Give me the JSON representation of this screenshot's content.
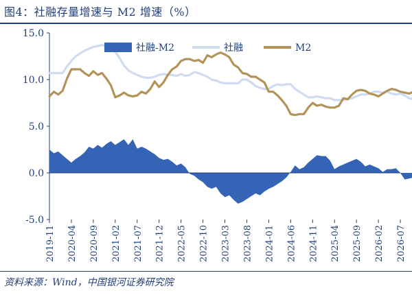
{
  "title": "图4：社融存量增速与 M2 增速（%）",
  "source": "资料来源：Wind，中国银河证券研究院",
  "colors": {
    "bar": "#3563b5",
    "shrf": "#cfdcf0",
    "m2": "#b4935a",
    "axis": "#1f3f7a",
    "text": "#1f3f7a"
  },
  "chart_data": {
    "type": "line",
    "ylim": [
      -5,
      15
    ],
    "yticks": [
      "15.0",
      "10.0",
      "5.0",
      "0.0",
      "-5.0"
    ],
    "ytick_values": [
      15,
      10,
      5,
      0,
      -5
    ],
    "xticks": [
      "2019-11",
      "2020-04",
      "2020-09",
      "2021-02",
      "2021-07",
      "2021-12",
      "2022-05",
      "2022-10",
      "2023-03",
      "2023-08",
      "2024-01",
      "2024-06",
      "2024-11",
      "2025-04",
      "2025-09",
      "2026-02",
      "2026-07"
    ],
    "legend": {
      "placement": "top"
    },
    "series": [
      {
        "name": "社融-M2",
        "kind": "area",
        "values": [
          2.5,
          2.1,
          2.3,
          1.9,
          1.5,
          1.1,
          1.5,
          1.8,
          2.2,
          2.8,
          2.6,
          3.0,
          2.7,
          3.1,
          3.4,
          3.0,
          3.3,
          3.6,
          3.0,
          3.6,
          2.6,
          2.8,
          2.6,
          2.3,
          2.0,
          1.6,
          1.4,
          1.5,
          1.2,
          0.8,
          1.0,
          0.6,
          -0.1,
          -0.3,
          -0.7,
          -1.0,
          -1.5,
          -1.7,
          -1.5,
          -2.2,
          -2.6,
          -2.4,
          -2.9,
          -3.3,
          -3.1,
          -2.8,
          -2.5,
          -2.2,
          -2.4,
          -2.0,
          -1.7,
          -1.5,
          -1.2,
          -0.9,
          -0.5,
          0.1,
          0.8,
          0.4,
          0.6,
          1.1,
          1.5,
          1.9,
          1.8,
          1.8,
          1.3,
          0.4,
          0.7,
          0.9,
          1.1,
          1.3,
          1.5,
          1.2,
          0.7,
          0.9,
          0.7,
          0.5,
          0.1,
          0.4,
          0.4,
          0.5,
          0.0,
          -0.7,
          -0.6,
          -0.5,
          -0.7,
          -0.8,
          -0.6,
          -0.3
        ],
        "start": "2019-11"
      },
      {
        "name": "社融",
        "kind": "line",
        "values": [
          10.7,
          10.7,
          10.7,
          10.7,
          11.4,
          12.0,
          12.5,
          12.8,
          13.1,
          13.3,
          13.5,
          13.6,
          13.7,
          13.6,
          13.3,
          13.0,
          12.3,
          11.5,
          11.0,
          10.7,
          10.5,
          10.3,
          10.2,
          10.2,
          10.3,
          10.5,
          10.6,
          10.5,
          10.5,
          10.4,
          10.6,
          10.4,
          10.5,
          10.8,
          10.7,
          10.5,
          10.3,
          10.0,
          9.9,
          9.7,
          9.6,
          9.6,
          9.6,
          9.6,
          10.0,
          10.0,
          9.7,
          9.3,
          9.1,
          9.0,
          9.0,
          9.3,
          9.5,
          9.4,
          9.5,
          9.5,
          9.0,
          8.7,
          8.4,
          8.1,
          8.1,
          8.2,
          8.1,
          8.0,
          8.0,
          7.8,
          7.8,
          7.8,
          7.9,
          8.0,
          8.2,
          8.4,
          8.4,
          8.5,
          8.7,
          8.7,
          8.6,
          8.7,
          8.5,
          8.4,
          8.5,
          8.3,
          8.0,
          7.9,
          7.8,
          7.7,
          7.5,
          7.4
        ],
        "start": "2019-11"
      },
      {
        "name": "M2",
        "kind": "line",
        "values": [
          8.2,
          8.7,
          8.4,
          8.8,
          10.1,
          11.1,
          11.1,
          11.1,
          10.7,
          10.4,
          10.9,
          10.5,
          10.7,
          10.1,
          9.4,
          8.1,
          8.3,
          8.6,
          8.3,
          8.2,
          8.3,
          8.7,
          8.5,
          9.0,
          9.8,
          9.2,
          9.7,
          10.5,
          11.1,
          11.4,
          12.0,
          12.2,
          12.2,
          12.0,
          12.1,
          11.8,
          12.6,
          12.4,
          12.7,
          12.9,
          12.7,
          12.4,
          11.6,
          11.3,
          10.7,
          10.6,
          10.3,
          10.3,
          10.0,
          9.7,
          8.7,
          8.7,
          8.3,
          7.8,
          7.2,
          6.3,
          6.2,
          6.3,
          6.3,
          7.0,
          7.5,
          7.2,
          7.3,
          7.1,
          7.0,
          7.0,
          7.2,
          8.0,
          7.9,
          8.4,
          8.8,
          8.9,
          8.8,
          8.5,
          8.4,
          8.2,
          8.5,
          8.8,
          9.0,
          8.9,
          8.7,
          8.6,
          8.5,
          8.7,
          8.6,
          8.1,
          7.9,
          7.7
        ],
        "start": "2019-11"
      }
    ]
  }
}
